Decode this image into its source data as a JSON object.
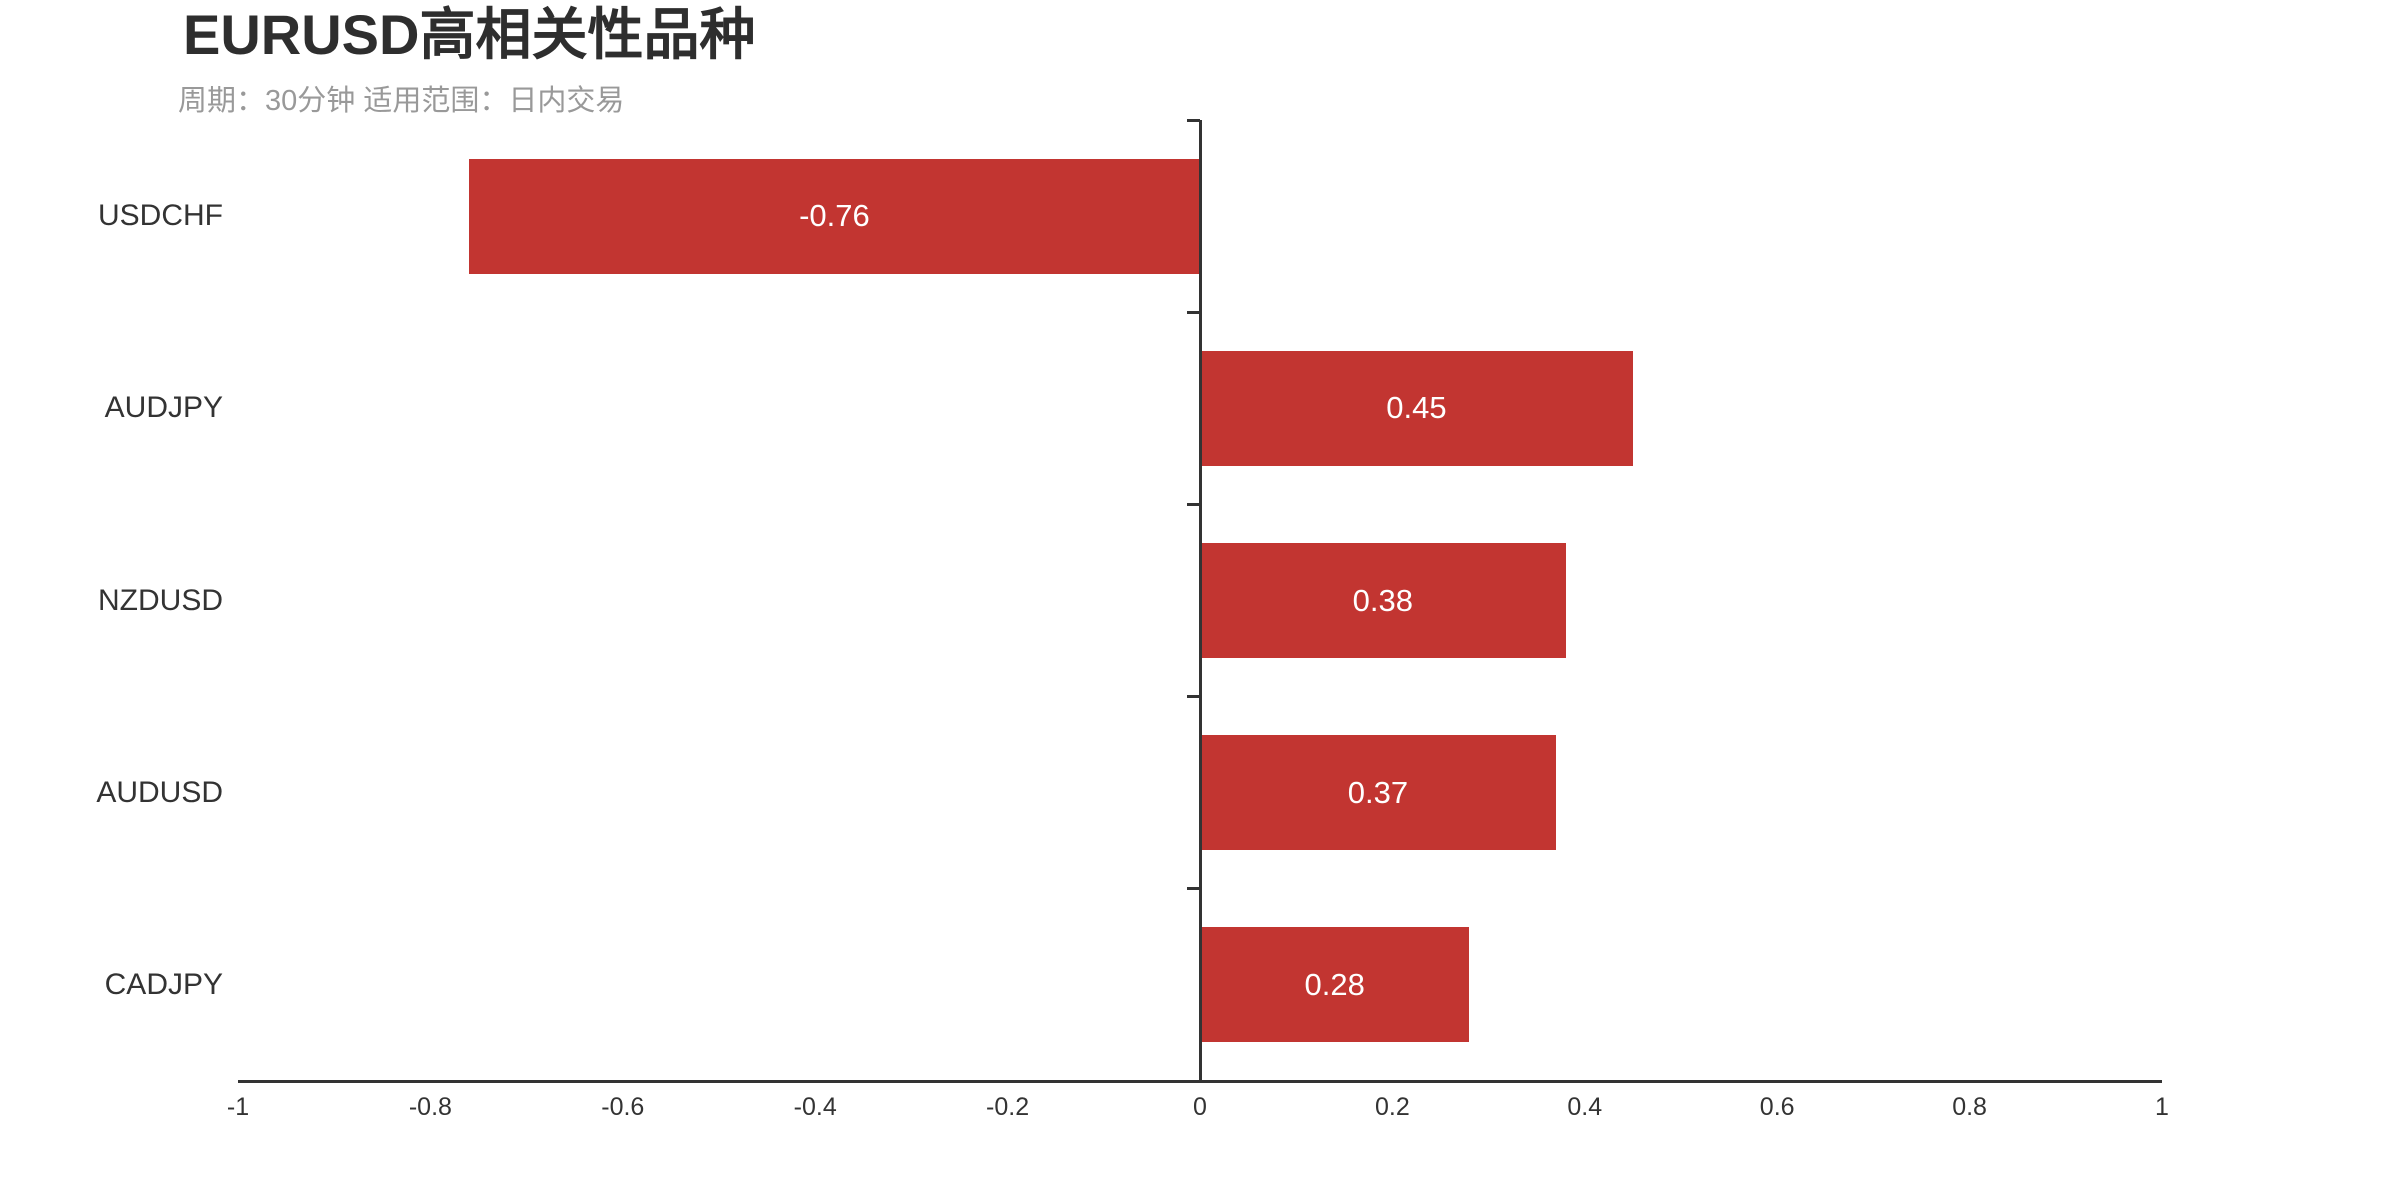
{
  "chart_data": {
    "type": "bar",
    "orientation": "horizontal",
    "title": "EURUSD高相关性品种",
    "subtitle": "周期：30分钟 适用范围：日内交易",
    "categories": [
      "USDCHF",
      "AUDJPY",
      "NZDUSD",
      "AUDUSD",
      "CADJPY"
    ],
    "values": [
      -0.76,
      0.45,
      0.38,
      0.37,
      0.28
    ],
    "value_labels": [
      "-0.76",
      "0.45",
      "0.38",
      "0.37",
      "0.28"
    ],
    "xlabel": "",
    "ylabel": "",
    "xlim": [
      -1,
      1
    ],
    "xticks": [
      -1,
      -0.8,
      -0.6,
      -0.4,
      -0.2,
      0,
      0.2,
      0.4,
      0.6,
      0.8,
      1
    ],
    "xtick_labels": [
      "-1",
      "-0.8",
      "-0.6",
      "-0.4",
      "-0.2",
      "0",
      "0.2",
      "0.4",
      "0.6",
      "0.8",
      "1"
    ],
    "grid": false,
    "legend": "none",
    "colors": {
      "bar": "#c23531",
      "value_label": "#ffffff",
      "axis": "#333333",
      "tick_label": "#333333",
      "title": "#2e2e2e",
      "subtitle": "#999999"
    }
  }
}
